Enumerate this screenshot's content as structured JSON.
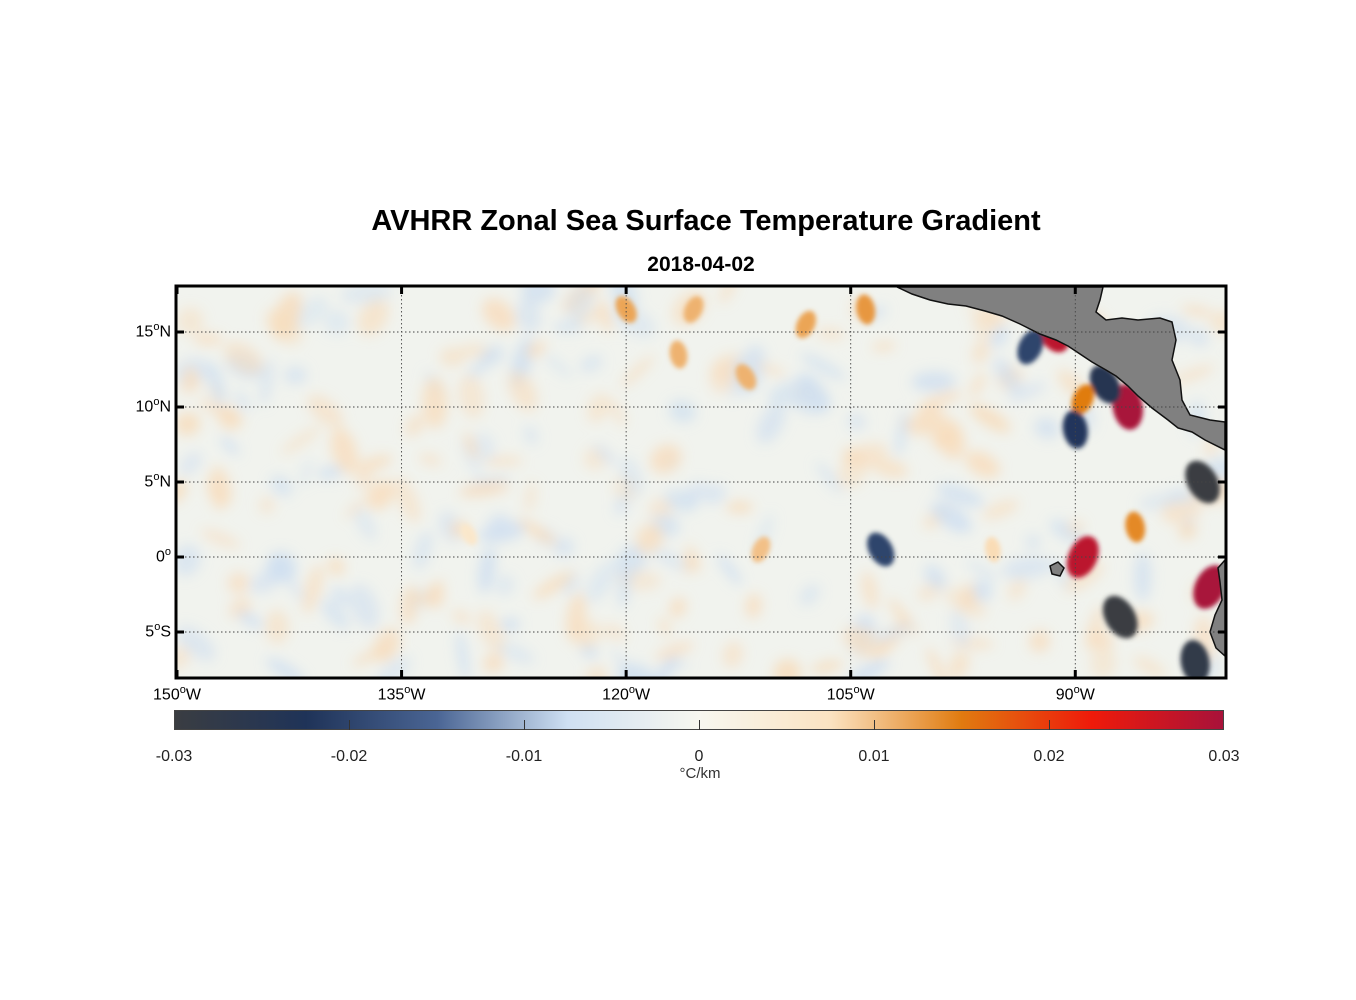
{
  "title": "AVHRR Zonal Sea Surface Temperature Gradient",
  "subtitle": "2018-04-02",
  "map": {
    "region": {
      "lon_min": -150,
      "lon_max": -80,
      "lat_min": -8,
      "lat_max": 18
    },
    "grid": true,
    "land_color": "#808080",
    "lat_ticks": [
      {
        "value": 15,
        "num": "15",
        "hemi": "N"
      },
      {
        "value": 10,
        "num": "10",
        "hemi": "N"
      },
      {
        "value": 5,
        "num": "5",
        "hemi": "N"
      },
      {
        "value": 0,
        "num": "0",
        "hemi": ""
      },
      {
        "value": -5,
        "num": "5",
        "hemi": "S"
      }
    ],
    "lon_ticks": [
      {
        "value": -150,
        "num": "150",
        "hemi": "W"
      },
      {
        "value": -135,
        "num": "135",
        "hemi": "W"
      },
      {
        "value": -120,
        "num": "120",
        "hemi": "W"
      },
      {
        "value": -105,
        "num": "105",
        "hemi": "W"
      },
      {
        "value": -90,
        "num": "90",
        "hemi": "W"
      }
    ]
  },
  "colorbar": {
    "unit": "°C/km",
    "range": [
      -0.03,
      0.03
    ],
    "ticks": [
      "-0.03",
      "-0.02",
      "-0.01",
      "0",
      "0.01",
      "0.02",
      "0.03"
    ],
    "stops": [
      "#3a3d42",
      "#1f3358",
      "#4a6594",
      "#cfe0f2",
      "#f7f7f0",
      "#fbe3c2",
      "#e07b10",
      "#ee1a0a",
      "#a8123a"
    ]
  },
  "chart_data": {
    "type": "heatmap",
    "title": "AVHRR Zonal Sea Surface Temperature Gradient",
    "subtitle": "2018-04-02",
    "x_range": [
      -150,
      -80
    ],
    "y_range": [
      -8,
      18
    ],
    "colorbar_label": "°C/km",
    "value_range": [
      -0.03,
      0.03
    ],
    "features": [
      {
        "lon": -91.5,
        "lat": 15.0,
        "value": 0.028
      },
      {
        "lon": -93.0,
        "lat": 14.0,
        "value": -0.02
      },
      {
        "lon": -86.5,
        "lat": 10.0,
        "value": 0.03
      },
      {
        "lon": -88.0,
        "lat": 11.5,
        "value": -0.025
      },
      {
        "lon": -89.5,
        "lat": 10.5,
        "value": 0.015
      },
      {
        "lon": -90.0,
        "lat": 8.5,
        "value": -0.022
      },
      {
        "lon": -81.5,
        "lat": 5.0,
        "value": -0.03
      },
      {
        "lon": -89.5,
        "lat": 0.0,
        "value": 0.028
      },
      {
        "lon": -86.0,
        "lat": 2.0,
        "value": 0.014
      },
      {
        "lon": -87.0,
        "lat": -4.0,
        "value": -0.03
      },
      {
        "lon": -81.0,
        "lat": -2.0,
        "value": 0.03
      },
      {
        "lon": -82.0,
        "lat": -7.0,
        "value": -0.028
      },
      {
        "lon": -103.0,
        "lat": 0.5,
        "value": -0.02
      },
      {
        "lon": -108.0,
        "lat": 15.5,
        "value": 0.012
      },
      {
        "lon": -104.0,
        "lat": 16.5,
        "value": 0.013
      },
      {
        "lon": -120.0,
        "lat": 16.5,
        "value": 0.012
      },
      {
        "lon": -115.5,
        "lat": 16.5,
        "value": 0.011
      },
      {
        "lon": -116.5,
        "lat": 13.5,
        "value": 0.011
      },
      {
        "lon": -112.0,
        "lat": 12.0,
        "value": 0.011
      },
      {
        "lon": -111.0,
        "lat": 0.5,
        "value": 0.01
      },
      {
        "lon": -95.5,
        "lat": 0.5,
        "value": 0.008
      },
      {
        "lon": -130.5,
        "lat": 1.5,
        "value": 0.006
      }
    ]
  }
}
